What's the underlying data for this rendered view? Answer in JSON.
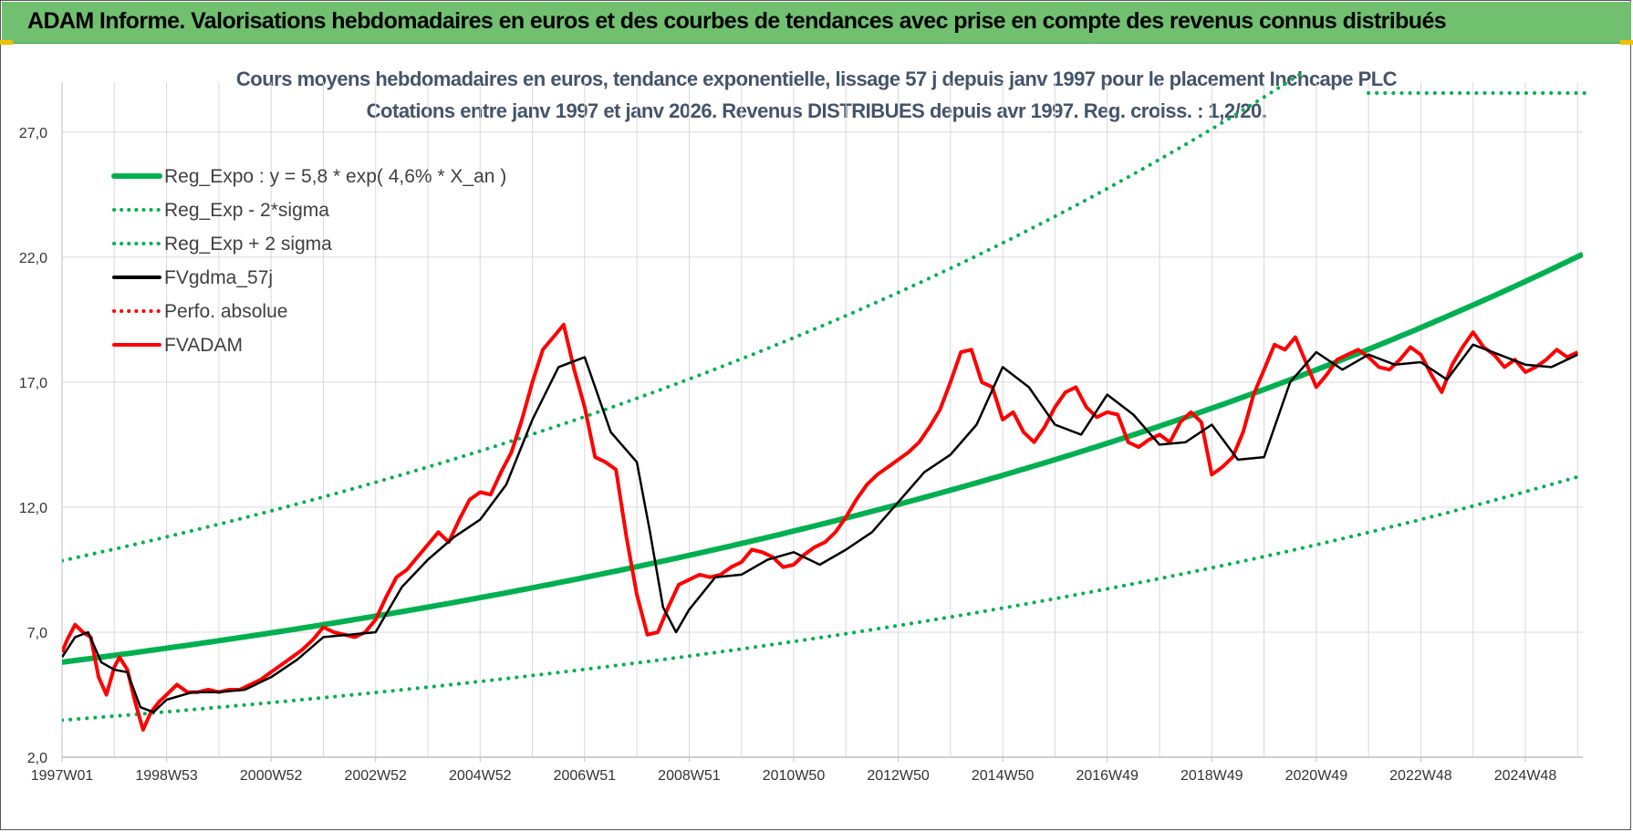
{
  "header": {
    "title": "ADAM Informe. Valorisations hebdomadaires en euros et des courbes de tendances avec prise en compte des revenus connus distribués"
  },
  "colors": {
    "header_bg": "#70c070",
    "reg_line": "#00b050",
    "fvgdma": "#000000",
    "fvadam": "#ff0000",
    "title_text": "#44546a"
  },
  "chart_data": {
    "type": "line",
    "title_line1": "Cours moyens hebdomadaires en euros, tendance exponentielle, lissage 57 j depuis janv 1997 pour le placement Inchcape PLC",
    "title_line2": "Cotations entre janv 1997 et janv 2026. Revenus DISTRIBUES depuis avr 1997. Reg. croiss. : 1,2/20.",
    "xlabel": "",
    "ylabel": "",
    "x_range": [
      1997.0,
      2026.1
    ],
    "ylim": [
      2.0,
      29.0
    ],
    "y_ticks": [
      2.0,
      7.0,
      12.0,
      17.0,
      22.0,
      27.0
    ],
    "y_tick_labels": [
      "2,0",
      "7,0",
      "12,0",
      "17,0",
      "22,0",
      "27,0"
    ],
    "x_ticks": [
      1997.0,
      1999.0,
      2001.0,
      2003.0,
      2005.0,
      2007.0,
      2009.0,
      2011.0,
      2013.0,
      2015.0,
      2017.0,
      2019.0,
      2021.0,
      2023.0,
      2025.0
    ],
    "x_tick_labels": [
      "1997W01",
      "1998W53",
      "2000W52",
      "2002W52",
      "2004W52",
      "2006W51",
      "2008W51",
      "2010W50",
      "2012W50",
      "2014W50",
      "2016W49",
      "2018W49",
      "2020W49",
      "2022W48",
      "2024W48"
    ],
    "grid": true,
    "legend_position": "top-left",
    "legend": [
      {
        "label": "Reg_Expo : y = 5,8 * exp( 4,6% *  X_an )",
        "color": "#00b050",
        "style": "solid-thick"
      },
      {
        "label": "Reg_Exp - 2*sigma",
        "color": "#00b050",
        "style": "dotted"
      },
      {
        "label": "Reg_Exp + 2 sigma",
        "color": "#00b050",
        "style": "dotted"
      },
      {
        "label": "FVgdma_57j",
        "color": "#000000",
        "style": "solid"
      },
      {
        "label": "Perfo. absolue",
        "color": "#ff0000",
        "style": "dotted"
      },
      {
        "label": "FVADAM",
        "color": "#ff0000",
        "style": "solid"
      }
    ],
    "regression": {
      "a": 5.8,
      "rate": 0.046,
      "lower_factor": 0.6,
      "upper_factor": 1.7,
      "x_start": 1997.0
    },
    "series": [
      {
        "name": "FVADAM",
        "x": [
          1997.0,
          1997.1,
          1997.25,
          1997.4,
          1997.55,
          1997.7,
          1997.85,
          1998.0,
          1998.1,
          1998.25,
          1998.4,
          1998.55,
          1998.7,
          1998.85,
          1999.0,
          1999.2,
          1999.4,
          1999.6,
          1999.8,
          2000.0,
          2000.2,
          2000.4,
          2000.6,
          2000.8,
          2001.0,
          2001.2,
          2001.4,
          2001.6,
          2001.8,
          2002.0,
          2002.2,
          2002.4,
          2002.6,
          2002.8,
          2003.0,
          2003.2,
          2003.4,
          2003.6,
          2003.8,
          2004.0,
          2004.2,
          2004.4,
          2004.6,
          2004.8,
          2005.0,
          2005.2,
          2005.4,
          2005.6,
          2005.8,
          2006.0,
          2006.2,
          2006.4,
          2006.6,
          2006.8,
          2007.0,
          2007.2,
          2007.4,
          2007.6,
          2007.8,
          2008.0,
          2008.2,
          2008.4,
          2008.6,
          2008.8,
          2009.0,
          2009.2,
          2009.4,
          2009.6,
          2009.8,
          2010.0,
          2010.2,
          2010.4,
          2010.6,
          2010.8,
          2011.0,
          2011.2,
          2011.4,
          2011.6,
          2011.8,
          2012.0,
          2012.2,
          2012.4,
          2012.6,
          2012.8,
          2013.0,
          2013.2,
          2013.4,
          2013.6,
          2013.8,
          2014.0,
          2014.2,
          2014.4,
          2014.6,
          2014.8,
          2015.0,
          2015.2,
          2015.4,
          2015.6,
          2015.8,
          2016.0,
          2016.2,
          2016.4,
          2016.6,
          2016.8,
          2017.0,
          2017.2,
          2017.4,
          2017.6,
          2017.8,
          2018.0,
          2018.2,
          2018.4,
          2018.6,
          2018.8,
          2019.0,
          2019.2,
          2019.4,
          2019.6,
          2019.8,
          2020.0,
          2020.2,
          2020.4,
          2020.6,
          2020.8,
          2021.0,
          2021.2,
          2021.4,
          2021.6,
          2021.8,
          2022.0,
          2022.2,
          2022.4,
          2022.6,
          2022.8,
          2023.0,
          2023.2,
          2023.4,
          2023.6,
          2023.8,
          2024.0,
          2024.2,
          2024.4,
          2024.6,
          2024.8,
          2025.0,
          2025.2,
          2025.4,
          2025.6,
          2025.8,
          2026.0
        ],
        "values": [
          6.2,
          6.7,
          7.3,
          7.0,
          6.8,
          5.2,
          4.5,
          5.6,
          6.0,
          5.5,
          4.2,
          3.1,
          3.8,
          4.2,
          4.5,
          4.9,
          4.6,
          4.6,
          4.7,
          4.6,
          4.7,
          4.7,
          4.9,
          5.1,
          5.4,
          5.7,
          6.0,
          6.3,
          6.7,
          7.2,
          7.0,
          6.9,
          6.8,
          7.0,
          7.5,
          8.4,
          9.2,
          9.5,
          10.0,
          10.5,
          11.0,
          10.6,
          11.5,
          12.3,
          12.6,
          12.5,
          13.4,
          14.2,
          15.5,
          17.0,
          18.3,
          18.8,
          19.3,
          17.5,
          16.0,
          14.0,
          13.8,
          13.5,
          10.8,
          8.5,
          6.9,
          7.0,
          8.0,
          8.9,
          9.1,
          9.3,
          9.2,
          9.3,
          9.6,
          9.8,
          10.3,
          10.2,
          10.0,
          9.6,
          9.7,
          10.1,
          10.4,
          10.6,
          11.0,
          11.6,
          12.3,
          12.9,
          13.3,
          13.6,
          13.9,
          14.2,
          14.6,
          15.2,
          15.9,
          17.0,
          18.2,
          18.3,
          17.0,
          16.8,
          15.5,
          15.8,
          15.0,
          14.6,
          15.2,
          16.0,
          16.6,
          16.8,
          16.0,
          15.6,
          15.8,
          15.7,
          14.6,
          14.4,
          14.7,
          14.9,
          14.6,
          15.4,
          15.8,
          15.4,
          13.3,
          13.6,
          14.0,
          15.0,
          16.5,
          17.5,
          18.5,
          18.3,
          18.8,
          17.8,
          16.8,
          17.3,
          17.9,
          18.1,
          18.3,
          18.0,
          17.6,
          17.5,
          17.9,
          18.4,
          18.1,
          17.3,
          16.6,
          17.7,
          18.4,
          19.0,
          18.4,
          18.1,
          17.6,
          17.9,
          17.4,
          17.6,
          17.9,
          18.3,
          18.0,
          18.2
        ]
      },
      {
        "name": "FVgdma_57j",
        "x": [
          1997.0,
          1997.25,
          1997.5,
          1997.75,
          1998.0,
          1998.25,
          1998.5,
          1998.75,
          1999.0,
          1999.5,
          2000.0,
          2000.5,
          2001.0,
          2001.5,
          2002.0,
          2002.5,
          2003.0,
          2003.5,
          2004.0,
          2004.5,
          2005.0,
          2005.5,
          2006.0,
          2006.5,
          2007.0,
          2007.5,
          2008.0,
          2008.25,
          2008.5,
          2008.75,
          2009.0,
          2009.5,
          2010.0,
          2010.5,
          2011.0,
          2011.5,
          2012.0,
          2012.5,
          2013.0,
          2013.5,
          2014.0,
          2014.5,
          2015.0,
          2015.5,
          2016.0,
          2016.5,
          2017.0,
          2017.5,
          2018.0,
          2018.5,
          2019.0,
          2019.5,
          2020.0,
          2020.5,
          2021.0,
          2021.5,
          2022.0,
          2022.5,
          2023.0,
          2023.5,
          2024.0,
          2024.5,
          2025.0,
          2025.5,
          2026.0
        ],
        "values": [
          6.0,
          6.8,
          7.0,
          5.8,
          5.5,
          5.4,
          4.0,
          3.8,
          4.3,
          4.6,
          4.6,
          4.7,
          5.2,
          5.9,
          6.8,
          6.9,
          7.0,
          8.8,
          9.9,
          10.8,
          11.5,
          12.9,
          15.5,
          17.6,
          18.0,
          15.0,
          13.8,
          11.0,
          8.0,
          7.0,
          7.9,
          9.2,
          9.3,
          9.9,
          10.2,
          9.7,
          10.3,
          11.0,
          12.2,
          13.4,
          14.1,
          15.3,
          17.6,
          16.8,
          15.3,
          14.9,
          16.5,
          15.7,
          14.5,
          14.6,
          15.3,
          13.9,
          14.0,
          17.0,
          18.2,
          17.5,
          18.1,
          17.7,
          17.8,
          17.1,
          18.5,
          18.1,
          17.7,
          17.6,
          18.1
        ]
      }
    ]
  }
}
